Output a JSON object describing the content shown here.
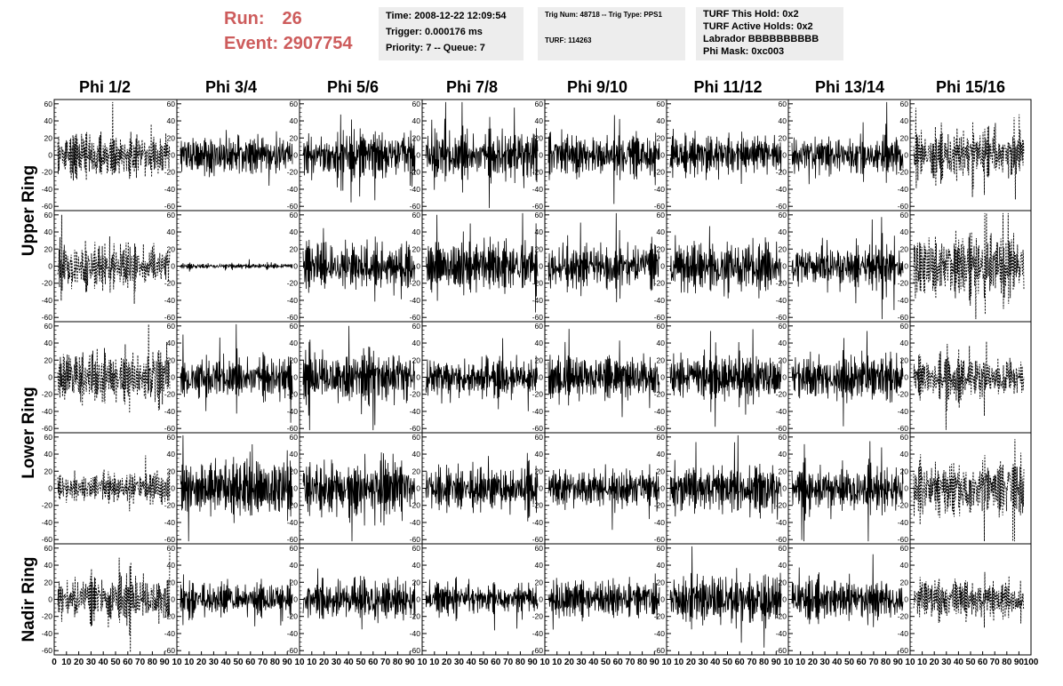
{
  "run_box": {
    "run_label": "Run:",
    "run_value": "26",
    "event_label": "Event:",
    "event_value": "2907754"
  },
  "info_time": {
    "time": "Time: 2008-12-22 12:09:54",
    "trigger": "Trigger: 0.000176 ms",
    "priority": "Priority: 7 -- Queue: 7"
  },
  "info_trig": {
    "trig": "Trig Num: 48718 -- Trig Type: PPS1",
    "turf": "TURF: 114263"
  },
  "info_turf": {
    "hold": "TURF This Hold: 0x2",
    "active": "TURF Active Holds: 0x2",
    "labrador": "Labrador BBBBBBBBBB",
    "phi_mask": "Phi Mask: 0xc003"
  },
  "colors": {
    "header_red": "#cd5c5c",
    "info_bg": "#ededed"
  },
  "chart_data": {
    "type": "line",
    "columns": [
      "Phi 1/2",
      "Phi 3/4",
      "Phi 5/6",
      "Phi 7/8",
      "Phi 9/10",
      "Phi 11/12",
      "Phi 13/14",
      "Phi 15/16"
    ],
    "row_groups": [
      {
        "label": "Upper Ring",
        "rows": 2
      },
      {
        "label": "Lower Ring",
        "rows": 2
      },
      {
        "label": "Nadir Ring",
        "rows": 1
      }
    ],
    "ylim": [
      -65,
      65
    ],
    "y_ticks": [
      -60,
      -40,
      -20,
      0,
      20,
      40,
      60
    ],
    "xlim": [
      0,
      100
    ],
    "x_tick_labels": [
      "0",
      "10",
      "20",
      "30",
      "40",
      "50",
      "60",
      "70",
      "80",
      "90",
      "100"
    ],
    "x_ticks_first": [
      "0",
      "10",
      "20",
      "30",
      "40",
      "50",
      "60",
      "70",
      "80",
      "90",
      "10"
    ],
    "x_ticks_mid": [
      "10",
      "20",
      "30",
      "40",
      "50",
      "60",
      "70",
      "80",
      "90",
      "10"
    ],
    "x_ticks_last": [
      "10",
      "20",
      "30",
      "40",
      "50",
      "60",
      "70",
      "80",
      "90",
      "100"
    ],
    "dashed_columns": [
      0,
      7
    ],
    "panels": [
      [
        {
          "amp": 15,
          "seed": 11
        },
        {
          "amp": 14,
          "seed": 12
        },
        {
          "amp": 15,
          "seed": 13
        },
        {
          "amp": 16,
          "seed": 14
        },
        {
          "amp": 15,
          "seed": 15
        },
        {
          "amp": 14,
          "seed": 16
        },
        {
          "amp": 14,
          "seed": 17
        },
        {
          "amp": 17,
          "seed": 18
        }
      ],
      [
        {
          "amp": 17,
          "seed": 21
        },
        {
          "amp": 2,
          "seed": 22
        },
        {
          "amp": 17,
          "seed": 23
        },
        {
          "amp": 17,
          "seed": 24
        },
        {
          "amp": 16,
          "seed": 25
        },
        {
          "amp": 18,
          "seed": 26
        },
        {
          "amp": 15,
          "seed": 27
        },
        {
          "amp": 22,
          "seed": 28
        }
      ],
      [
        {
          "amp": 19,
          "seed": 31
        },
        {
          "amp": 15,
          "seed": 32
        },
        {
          "amp": 18,
          "seed": 33
        },
        {
          "amp": 14,
          "seed": 34
        },
        {
          "amp": 16,
          "seed": 35
        },
        {
          "amp": 16,
          "seed": 36
        },
        {
          "amp": 17,
          "seed": 37
        },
        {
          "amp": 15,
          "seed": 38
        }
      ],
      [
        {
          "amp": 11,
          "seed": 41
        },
        {
          "amp": 20,
          "seed": 42
        },
        {
          "amp": 19,
          "seed": 43
        },
        {
          "amp": 16,
          "seed": 44
        },
        {
          "amp": 14,
          "seed": 45
        },
        {
          "amp": 17,
          "seed": 46
        },
        {
          "amp": 16,
          "seed": 47
        },
        {
          "amp": 22,
          "seed": 48
        }
      ],
      [
        {
          "amp": 17,
          "seed": 51
        },
        {
          "amp": 12,
          "seed": 52
        },
        {
          "amp": 14,
          "seed": 53
        },
        {
          "amp": 11,
          "seed": 54
        },
        {
          "amp": 13,
          "seed": 55
        },
        {
          "amp": 17,
          "seed": 56
        },
        {
          "amp": 14,
          "seed": 57
        },
        {
          "amp": 14,
          "seed": 58
        }
      ]
    ],
    "samples_per_trace": 260
  }
}
